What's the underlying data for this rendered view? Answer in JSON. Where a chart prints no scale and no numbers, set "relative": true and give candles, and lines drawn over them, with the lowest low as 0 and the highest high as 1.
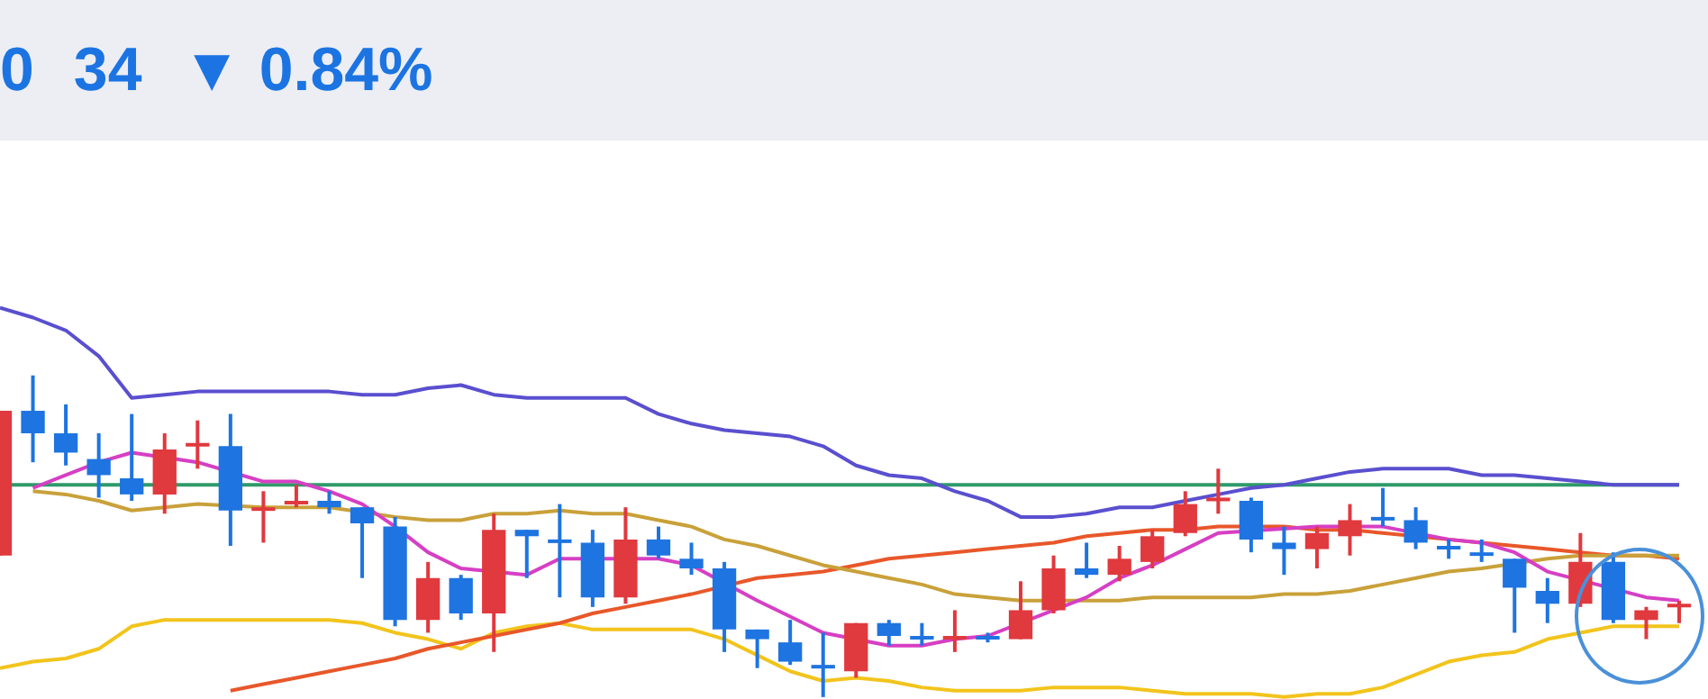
{
  "chart_data": {
    "type": "candlestick",
    "relative": true,
    "annotations": [
      "0",
      "34",
      "▼ 0.84%"
    ],
    "categories": [
      null,
      null,
      null,
      null,
      null,
      null,
      null,
      null,
      null,
      null,
      null,
      null,
      null,
      null,
      null,
      null,
      null,
      null,
      null,
      null,
      null,
      null,
      null,
      null,
      null,
      null,
      null,
      null,
      null,
      null,
      null,
      null,
      null,
      null,
      null,
      null,
      null,
      null,
      null,
      null,
      null,
      null,
      null,
      null,
      null,
      null,
      null,
      null,
      null,
      null,
      null,
      null
    ],
    "ohlc": [
      [
        0.44,
        0.89,
        0.44,
        0.89
      ],
      [
        0.89,
        1,
        0.73,
        0.82
      ],
      [
        0.82,
        0.91,
        0.72,
        0.76
      ],
      [
        0.74,
        0.82,
        0.62,
        0.69
      ],
      [
        0.68,
        0.88,
        0.61,
        0.63
      ],
      [
        0.63,
        0.82,
        0.57,
        0.77
      ],
      [
        0.78,
        0.86,
        0.71,
        0.79
      ],
      [
        0.78,
        0.88,
        0.47,
        0.58
      ],
      [
        0.58,
        0.64,
        0.48,
        0.59
      ],
      [
        0.6,
        0.66,
        0.59,
        0.61
      ],
      [
        0.61,
        0.64,
        0.57,
        0.59
      ],
      [
        0.59,
        0.59,
        0.37,
        0.54
      ],
      [
        0.53,
        0.56,
        0.22,
        0.24
      ],
      [
        0.24,
        0.42,
        0.2,
        0.37
      ],
      [
        0.37,
        0.38,
        0.24,
        0.26
      ],
      [
        0.26,
        0.57,
        0.14,
        0.52
      ],
      [
        0.52,
        0.52,
        0.37,
        0.5
      ],
      [
        0.49,
        0.6,
        0.31,
        0.48
      ],
      [
        0.48,
        0.52,
        0.28,
        0.31
      ],
      [
        0.31,
        0.59,
        0.29,
        0.49
      ],
      [
        0.49,
        0.53,
        0.43,
        0.44
      ],
      [
        0.43,
        0.48,
        0.38,
        0.4
      ],
      [
        0.4,
        0.42,
        0.14,
        0.21
      ],
      [
        0.21,
        0.21,
        0.09,
        0.18
      ],
      [
        0.17,
        0.24,
        0.1,
        0.11
      ],
      [
        0.1,
        0.2,
        0,
        0.09
      ],
      [
        0.08,
        0.23,
        0.06,
        0.23
      ],
      [
        0.23,
        0.24,
        0.16,
        0.19
      ],
      [
        0.19,
        0.23,
        0.16,
        0.18
      ],
      [
        0.18,
        0.27,
        0.14,
        0.19
      ],
      [
        0.19,
        0.2,
        0.17,
        0.18
      ],
      [
        0.18,
        0.36,
        0.18,
        0.27
      ],
      [
        0.27,
        0.44,
        0.26,
        0.4
      ],
      [
        0.4,
        0.48,
        0.37,
        0.38
      ],
      [
        0.38,
        0.47,
        0.36,
        0.43
      ],
      [
        0.42,
        0.52,
        0.4,
        0.5
      ],
      [
        0.51,
        0.64,
        0.5,
        0.6
      ],
      [
        0.61,
        0.71,
        0.57,
        0.62
      ],
      [
        0.61,
        0.62,
        0.45,
        0.49
      ],
      [
        0.48,
        0.53,
        0.38,
        0.46
      ],
      [
        0.46,
        0.53,
        0.4,
        0.51
      ],
      [
        0.5,
        0.6,
        0.44,
        0.55
      ],
      [
        0.56,
        0.65,
        0.53,
        0.55
      ],
      [
        0.55,
        0.59,
        0.46,
        0.48
      ],
      [
        0.47,
        0.49,
        0.43,
        0.46
      ],
      [
        0.45,
        0.49,
        0.42,
        0.44
      ],
      [
        0.43,
        0.43,
        0.2,
        0.34
      ],
      [
        0.33,
        0.37,
        0.23,
        0.29
      ],
      [
        0.29,
        0.51,
        0.28,
        0.42
      ],
      [
        0.42,
        0.45,
        0.23,
        0.24
      ],
      [
        0.24,
        0.28,
        0.18,
        0.27
      ],
      [
        0.28,
        0.3,
        0.23,
        0.29
      ]
    ],
    "colors": [
      "#e0393e",
      "#1e74e0",
      "#1e74e0",
      "#1e74e0",
      "#1e74e0",
      "#e0393e",
      "#e0393e",
      "#1e74e0",
      "#e0393e",
      "#e0393e",
      "#1e74e0",
      "#1e74e0",
      "#1e74e0",
      "#e0393e",
      "#1e74e0",
      "#e0393e",
      "#1e74e0",
      "#1e74e0",
      "#1e74e0",
      "#e0393e",
      "#1e74e0",
      "#1e74e0",
      "#1e74e0",
      "#1e74e0",
      "#1e74e0",
      "#1e74e0",
      "#e0393e",
      "#1e74e0",
      "#1e74e0",
      "#e0393e",
      "#1e74e0",
      "#e0393e",
      "#e0393e",
      "#1e74e0",
      "#e0393e",
      "#e0393e",
      "#e0393e",
      "#e0393e",
      "#1e74e0",
      "#1e74e0",
      "#e0393e",
      "#e0393e",
      "#1e74e0",
      "#1e74e0",
      "#1e74e0",
      "#1e74e0",
      "#1e74e0",
      "#1e74e0",
      "#e0393e",
      "#1e74e0",
      "#e0393e",
      "#e0393e"
    ],
    "series": [
      {
        "type": "line",
        "color": "#5a4fcf",
        "values": [
          1.21,
          1.18,
          1.14,
          1.06,
          0.93,
          0.94,
          0.95,
          0.95,
          0.95,
          0.95,
          0.95,
          0.94,
          0.94,
          0.96,
          0.97,
          0.94,
          0.93,
          0.93,
          0.93,
          0.93,
          0.88,
          0.85,
          0.83,
          0.82,
          0.81,
          0.78,
          0.72,
          0.69,
          0.68,
          0.64,
          0.61,
          0.56,
          0.56,
          0.57,
          0.59,
          0.59,
          0.61,
          0.63,
          0.65,
          0.66,
          0.68,
          0.7,
          0.71,
          0.71,
          0.71,
          0.69,
          0.69,
          0.68,
          0.67,
          0.66,
          0.66,
          0.66
        ]
      },
      {
        "type": "line",
        "color": "#d63fc4",
        "values": [
          null,
          0.65,
          0.69,
          0.73,
          0.76,
          null,
          0.73,
          null,
          0.67,
          0.67,
          0.64,
          0.6,
          0.53,
          0.45,
          0.4,
          null,
          0.38,
          0.43,
          null,
          null,
          0.43,
          0.41,
          null,
          0.3,
          0.25,
          0.2,
          null,
          0.16,
          0.16,
          0.18,
          0.19,
          null,
          0.27,
          0.31,
          0.37,
          0.41,
          0.46,
          0.51,
          null,
          null,
          0.53,
          0.53,
          0.53,
          null,
          0.49,
          0.48,
          0.45,
          0.39,
          null,
          null,
          0.31,
          0.3
        ]
      },
      {
        "type": "line",
        "color": "#c9a13a",
        "values": [
          null,
          0.64,
          0.63,
          0.61,
          0.58,
          0.59,
          0.6,
          null,
          0.59,
          0.59,
          0.59,
          null,
          0.56,
          0.55,
          0.55,
          0.57,
          0.57,
          0.58,
          0.57,
          0.57,
          0.55,
          0.53,
          0.49,
          0.47,
          0.44,
          0.41,
          0.39,
          0.37,
          0.35,
          0.32,
          0.31,
          0.3,
          null,
          0.3,
          0.3,
          0.31,
          0.31,
          0.31,
          0.31,
          0.32,
          0.32,
          0.33,
          0.35,
          0.37,
          0.39,
          0.4,
          null,
          0.43,
          0.44,
          0.44,
          0.44,
          0.44
        ]
      },
      {
        "type": "line",
        "color": "#e8572a",
        "values": [
          null,
          null,
          null,
          null,
          null,
          null,
          null,
          0.02,
          0.04,
          0.06,
          0.08,
          0.1,
          0.12,
          0.15,
          0.17,
          0.19,
          0.21,
          0.23,
          0.26,
          0.28,
          0.3,
          0.32,
          null,
          0.37,
          0.38,
          0.39,
          0.41,
          0.43,
          0.44,
          0.45,
          0.46,
          0.47,
          0.48,
          0.5,
          0.51,
          0.52,
          0.52,
          0.53,
          null,
          0.53,
          0.52,
          0.52,
          0.51,
          null,
          0.49,
          0.48,
          0.47,
          0.46,
          0.45,
          0.44,
          0.44,
          0.43
        ]
      },
      {
        "type": "line",
        "color": "#f2c41c",
        "values": [
          0.09,
          0.11,
          0.12,
          0.15,
          0.22,
          0.24,
          0.24,
          0.24,
          0.24,
          0.24,
          0.24,
          0.23,
          0.2,
          0.18,
          0.15,
          0.2,
          0.22,
          0.23,
          0.21,
          0.21,
          0.21,
          0.21,
          0.18,
          0.13,
          0.08,
          0.05,
          0.06,
          0.05,
          0.03,
          0.02,
          0.02,
          0.02,
          0.03,
          0.03,
          0.03,
          0.02,
          0.01,
          0.01,
          0.01,
          0,
          0.01,
          0.01,
          0.03,
          0.07,
          0.11,
          0.13,
          0.14,
          0.18,
          0.2,
          0.22,
          0.22,
          0.22
        ]
      }
    ],
    "ref_lines": [
      {
        "axis": "y",
        "value": 0.66,
        "color": "#2e9a6a"
      }
    ]
  }
}
